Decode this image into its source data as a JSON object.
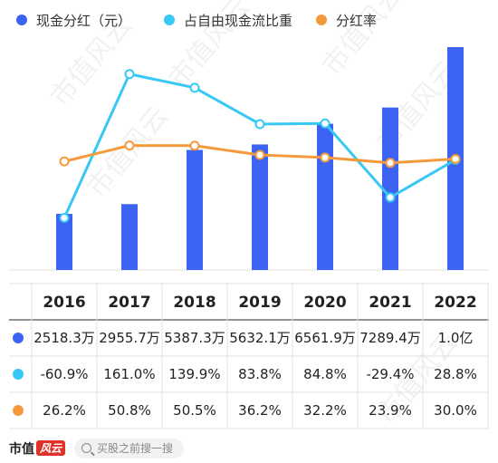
{
  "chart_data": {
    "type": "bar+line",
    "categories": [
      "2016",
      "2017",
      "2018",
      "2019",
      "2020",
      "2021",
      "2022"
    ],
    "series": [
      {
        "name": "现金分红（元）",
        "kind": "bar",
        "color": "#3d63f2",
        "values": [
          25183000,
          29557000,
          53873000,
          56321000,
          65619000,
          72894000,
          100000000
        ],
        "labels": [
          "2518.3万",
          "2955.7万",
          "5387.3万",
          "5632.1万",
          "6561.9万",
          "7289.4万",
          "1.0亿"
        ]
      },
      {
        "name": "占自由现金流比重",
        "kind": "line",
        "color": "#38c8f5",
        "values": [
          -60.9,
          161.0,
          139.9,
          83.8,
          84.8,
          -29.4,
          28.8
        ],
        "labels": [
          "-60.9%",
          "161.0%",
          "139.9%",
          "83.8%",
          "84.8%",
          "-29.4%",
          "28.8%"
        ]
      },
      {
        "name": "分红率",
        "kind": "line",
        "color": "#f59a3c",
        "values": [
          26.2,
          50.8,
          50.5,
          36.2,
          32.2,
          23.9,
          30.0
        ],
        "labels": [
          "26.2%",
          "50.8%",
          "50.5%",
          "36.2%",
          "32.2%",
          "23.9%",
          "30.0%"
        ]
      }
    ],
    "legend": "top-left",
    "grid": false
  },
  "watermark": "市值风云",
  "footer": {
    "logo_text": "市值",
    "logo_mark": "风云",
    "search_text": "买股之前搜一搜"
  }
}
